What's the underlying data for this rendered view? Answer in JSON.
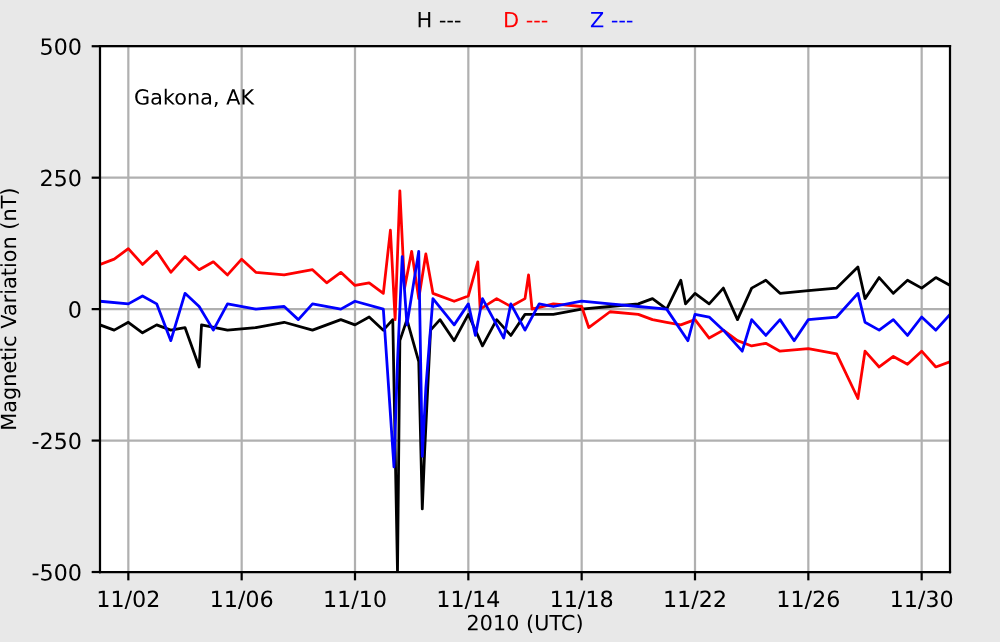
{
  "chart_data": {
    "type": "line",
    "xlabel": "2010 (UTC)",
    "ylabel": "Magnetic Variation (nT)",
    "annotations": [
      "Gakona, AK"
    ],
    "xlim": [
      "2010-11-01",
      "2010-12-01"
    ],
    "xticks": [
      {
        "value": "2010-11-02",
        "label": "11/02"
      },
      {
        "value": "2010-11-06",
        "label": "11/06"
      },
      {
        "value": "2010-11-10",
        "label": "11/10"
      },
      {
        "value": "2010-11-14",
        "label": "11/14"
      },
      {
        "value": "2010-11-18",
        "label": "11/18"
      },
      {
        "value": "2010-11-22",
        "label": "11/22"
      },
      {
        "value": "2010-11-26",
        "label": "11/26"
      },
      {
        "value": "2010-11-30",
        "label": "11/30"
      }
    ],
    "ylim": [
      -500,
      500
    ],
    "yticks": [
      -500,
      -250,
      0,
      250,
      500
    ],
    "grid": true,
    "legend": "top",
    "marker": "none",
    "line_style": "solid",
    "series": [
      {
        "name": "H ---",
        "color": "#000000",
        "x": [
          "2010-11-01T00:00",
          "2010-11-01T12:00",
          "2010-11-02T00:00",
          "2010-11-02T12:00",
          "2010-11-03T00:00",
          "2010-11-03T12:00",
          "2010-11-04T00:00",
          "2010-11-04T12:00",
          "2010-11-04T14:00",
          "2010-11-05T12:00",
          "2010-11-06T12:00",
          "2010-11-07T12:00",
          "2010-11-08T12:00",
          "2010-11-09T12:00",
          "2010-11-10T00:00",
          "2010-11-10T12:00",
          "2010-11-11T00:00",
          "2010-11-11T08:00",
          "2010-11-11T12:00",
          "2010-11-11T14:00",
          "2010-11-11T20:00",
          "2010-11-12T06:00",
          "2010-11-12T09:00",
          "2010-11-12T11:00",
          "2010-11-12T16:00",
          "2010-11-13T00:00",
          "2010-11-13T12:00",
          "2010-11-14T00:00",
          "2010-11-14T12:00",
          "2010-11-15T00:00",
          "2010-11-15T12:00",
          "2010-11-16T00:00",
          "2010-11-17T00:00",
          "2010-11-18T00:00",
          "2010-11-19T00:00",
          "2010-11-20T00:00",
          "2010-11-20T12:00",
          "2010-11-21T00:00",
          "2010-11-21T12:00",
          "2010-11-21T16:00",
          "2010-11-22T00:00",
          "2010-11-22T12:00",
          "2010-11-23T00:00",
          "2010-11-23T12:00",
          "2010-11-24T00:00",
          "2010-11-24T12:00",
          "2010-11-25T00:00",
          "2010-11-26T00:00",
          "2010-11-27T00:00",
          "2010-11-27T18:00",
          "2010-11-28T00:00",
          "2010-11-28T12:00",
          "2010-11-29T00:00",
          "2010-11-29T12:00",
          "2010-11-30T00:00",
          "2010-11-30T12:00",
          "2010-12-01T00:00"
        ],
        "values": [
          -30,
          -40,
          -25,
          -45,
          -30,
          -40,
          -35,
          -110,
          -30,
          -40,
          -35,
          -25,
          -40,
          -20,
          -30,
          -15,
          -40,
          -20,
          -500,
          -60,
          -20,
          -100,
          -380,
          -270,
          -40,
          -20,
          -60,
          -10,
          -70,
          -20,
          -50,
          -10,
          -10,
          0,
          5,
          10,
          20,
          0,
          55,
          10,
          30,
          10,
          40,
          -20,
          40,
          55,
          30,
          35,
          40,
          80,
          20,
          60,
          30,
          55,
          40,
          60,
          45
        ]
      },
      {
        "name": "D ---",
        "color": "#ff0000",
        "x": [
          "2010-11-01T00:00",
          "2010-11-01T12:00",
          "2010-11-02T00:00",
          "2010-11-02T12:00",
          "2010-11-03T00:00",
          "2010-11-03T12:00",
          "2010-11-04T00:00",
          "2010-11-04T12:00",
          "2010-11-05T00:00",
          "2010-11-05T12:00",
          "2010-11-06T00:00",
          "2010-11-06T12:00",
          "2010-11-07T12:00",
          "2010-11-08T12:00",
          "2010-11-09T00:00",
          "2010-11-09T12:00",
          "2010-11-10T00:00",
          "2010-11-10T12:00",
          "2010-11-11T00:00",
          "2010-11-11T06:00",
          "2010-11-11T10:00",
          "2010-11-11T14:00",
          "2010-11-11T18:00",
          "2010-11-12T00:00",
          "2010-11-12T06:00",
          "2010-11-12T12:00",
          "2010-11-12T18:00",
          "2010-11-13T12:00",
          "2010-11-14T00:00",
          "2010-11-14T08:00",
          "2010-11-14T10:00",
          "2010-11-15T00:00",
          "2010-11-15T12:00",
          "2010-11-16T00:00",
          "2010-11-16T03:00",
          "2010-11-16T06:00",
          "2010-11-17T00:00",
          "2010-11-18T00:00",
          "2010-11-18T06:00",
          "2010-11-19T00:00",
          "2010-11-20T00:00",
          "2010-11-20T12:00",
          "2010-11-21T00:00",
          "2010-11-21T12:00",
          "2010-11-22T00:00",
          "2010-11-22T12:00",
          "2010-11-23T00:00",
          "2010-11-23T12:00",
          "2010-11-24T00:00",
          "2010-11-24T12:00",
          "2010-11-25T00:00",
          "2010-11-26T00:00",
          "2010-11-27T00:00",
          "2010-11-27T18:00",
          "2010-11-28T00:00",
          "2010-11-28T12:00",
          "2010-11-29T00:00",
          "2010-11-29T12:00",
          "2010-11-30T00:00",
          "2010-11-30T12:00",
          "2010-12-01T00:00"
        ],
        "values": [
          85,
          95,
          115,
          85,
          110,
          70,
          100,
          75,
          90,
          65,
          95,
          70,
          65,
          75,
          50,
          70,
          45,
          50,
          30,
          150,
          -20,
          225,
          40,
          110,
          20,
          105,
          30,
          15,
          25,
          90,
          0,
          20,
          5,
          20,
          65,
          0,
          10,
          5,
          -35,
          -5,
          -10,
          -20,
          -25,
          -30,
          -20,
          -55,
          -40,
          -60,
          -70,
          -65,
          -80,
          -75,
          -85,
          -170,
          -80,
          -110,
          -90,
          -105,
          -80,
          -110,
          -100
        ]
      },
      {
        "name": "Z ---",
        "color": "#0000ff",
        "x": [
          "2010-11-01T00:00",
          "2010-11-02T00:00",
          "2010-11-02T12:00",
          "2010-11-03T00:00",
          "2010-11-03T12:00",
          "2010-11-04T00:00",
          "2010-11-04T12:00",
          "2010-11-05T00:00",
          "2010-11-05T12:00",
          "2010-11-06T12:00",
          "2010-11-07T12:00",
          "2010-11-08T00:00",
          "2010-11-08T12:00",
          "2010-11-09T12:00",
          "2010-11-10T00:00",
          "2010-11-11T00:00",
          "2010-11-11T09:00",
          "2010-11-11T12:00",
          "2010-11-11T16:00",
          "2010-11-11T20:00",
          "2010-11-12T06:00",
          "2010-11-12T09:00",
          "2010-11-12T12:00",
          "2010-11-12T18:00",
          "2010-11-13T12:00",
          "2010-11-14T00:00",
          "2010-11-14T06:00",
          "2010-11-14T12:00",
          "2010-11-15T06:00",
          "2010-11-15T12:00",
          "2010-11-16T00:00",
          "2010-11-16T12:00",
          "2010-11-17T00:00",
          "2010-11-18T00:00",
          "2010-11-19T00:00",
          "2010-11-20T00:00",
          "2010-11-21T00:00",
          "2010-11-21T18:00",
          "2010-11-22T00:00",
          "2010-11-22T12:00",
          "2010-11-23T00:00",
          "2010-11-23T16:00",
          "2010-11-24T00:00",
          "2010-11-24T12:00",
          "2010-11-25T00:00",
          "2010-11-25T12:00",
          "2010-11-26T00:00",
          "2010-11-27T00:00",
          "2010-11-27T18:00",
          "2010-11-28T00:00",
          "2010-11-28T12:00",
          "2010-11-29T00:00",
          "2010-11-29T12:00",
          "2010-11-30T00:00",
          "2010-11-30T12:00",
          "2010-12-01T00:00"
        ],
        "values": [
          15,
          10,
          25,
          10,
          -60,
          30,
          5,
          -40,
          10,
          0,
          5,
          -20,
          10,
          0,
          15,
          0,
          -300,
          -100,
          100,
          -30,
          110,
          -280,
          -150,
          20,
          -30,
          10,
          -50,
          20,
          -55,
          10,
          -40,
          10,
          5,
          15,
          10,
          5,
          0,
          -60,
          -10,
          -15,
          -40,
          -80,
          -20,
          -50,
          -20,
          -60,
          -20,
          -15,
          30,
          -25,
          -40,
          -20,
          -50,
          -15,
          -40,
          -10
        ]
      }
    ]
  }
}
